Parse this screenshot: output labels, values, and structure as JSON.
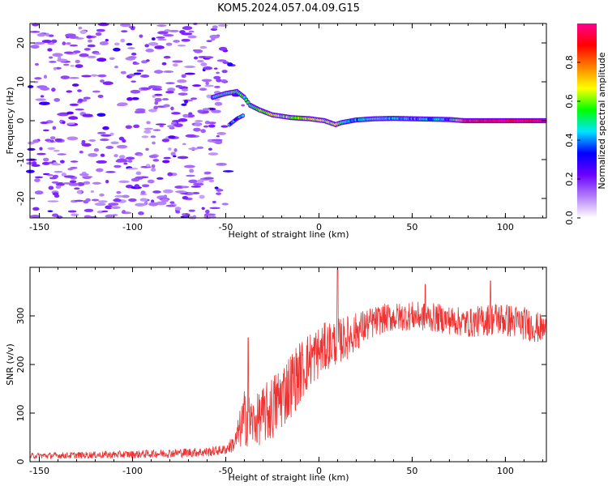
{
  "title": "KOM5.2024.057.04.09.G15",
  "chart_data": [
    {
      "type": "heatmap",
      "xlabel": "Height of straight line (km)",
      "ylabel": "Frequency (Hz)",
      "xlim": [
        -155,
        122
      ],
      "ylim": [
        -25,
        25
      ],
      "x_ticks": [
        -150,
        -100,
        -50,
        0,
        50,
        100
      ],
      "y_ticks": [
        -20,
        -10,
        0,
        10,
        20
      ],
      "colorbar": {
        "label": "Normalized spectral amplitude",
        "range": [
          0,
          1
        ],
        "ticks": [
          0.0,
          0.2,
          0.4,
          0.6,
          0.8
        ],
        "colors": [
          "#ffffff",
          "#b27dfa",
          "#6a00ff",
          "#0000ff",
          "#00e5ff",
          "#00ff00",
          "#ffff00",
          "#ff8000",
          "#ff0000",
          "#ff0090"
        ]
      },
      "ridge": [
        {
          "x": -57,
          "f": 6.0,
          "a": 0.45
        },
        {
          "x": -50,
          "f": 7.0,
          "a": 0.5
        },
        {
          "x": -44,
          "f": 7.5,
          "a": 0.55
        },
        {
          "x": -40,
          "f": 6.0,
          "a": 0.5
        },
        {
          "x": -37,
          "f": 4.0,
          "a": 0.55
        },
        {
          "x": -32,
          "f": 2.8,
          "a": 0.6
        },
        {
          "x": -25,
          "f": 1.5,
          "a": 0.62
        },
        {
          "x": -15,
          "f": 0.8,
          "a": 0.6
        },
        {
          "x": -5,
          "f": 0.5,
          "a": 0.65
        },
        {
          "x": 3,
          "f": 0.0,
          "a": 0.62
        },
        {
          "x": 9,
          "f": -1.0,
          "a": 0.65
        },
        {
          "x": 12,
          "f": -0.5,
          "a": 0.5
        },
        {
          "x": 20,
          "f": 0.2,
          "a": 0.4
        },
        {
          "x": 30,
          "f": 0.5,
          "a": 0.5
        },
        {
          "x": 40,
          "f": 0.6,
          "a": 0.45
        },
        {
          "x": 50,
          "f": 0.5,
          "a": 0.42
        },
        {
          "x": 60,
          "f": 0.4,
          "a": 0.4
        },
        {
          "x": 70,
          "f": 0.3,
          "a": 0.42
        },
        {
          "x": 78,
          "f": 0.0,
          "a": 0.9
        },
        {
          "x": 100,
          "f": 0.0,
          "a": 0.95
        },
        {
          "x": 122,
          "f": 0.0,
          "a": 0.95
        }
      ],
      "lower_branch": [
        {
          "x": -48,
          "f": -1.0,
          "a": 0.4
        },
        {
          "x": -44,
          "f": 0.5,
          "a": 0.4
        },
        {
          "x": -40,
          "f": 1.5,
          "a": 0.45
        }
      ]
    },
    {
      "type": "line",
      "xlabel": "Height of straight line (km)",
      "ylabel": "SNR (v/v)",
      "xlim": [
        -155,
        122
      ],
      "ylim": [
        0,
        400
      ],
      "x_ticks": [
        -150,
        -100,
        -50,
        0,
        50,
        100
      ],
      "y_ticks": [
        0,
        100,
        200,
        300
      ],
      "series": [
        {
          "color": "#ee3333",
          "envelope": [
            {
              "x": -155,
              "y": 12,
              "spread": 6
            },
            {
              "x": -100,
              "y": 15,
              "spread": 8
            },
            {
              "x": -60,
              "y": 20,
              "spread": 10
            },
            {
              "x": -50,
              "y": 25,
              "spread": 10
            },
            {
              "x": -45,
              "y": 40,
              "spread": 20
            },
            {
              "x": -40,
              "y": 90,
              "spread": 60
            },
            {
              "x": -35,
              "y": 80,
              "spread": 50
            },
            {
              "x": -25,
              "y": 110,
              "spread": 70
            },
            {
              "x": -15,
              "y": 160,
              "spread": 70
            },
            {
              "x": -5,
              "y": 210,
              "spread": 60
            },
            {
              "x": 5,
              "y": 240,
              "spread": 50
            },
            {
              "x": 15,
              "y": 255,
              "spread": 45
            },
            {
              "x": 25,
              "y": 280,
              "spread": 35
            },
            {
              "x": 35,
              "y": 295,
              "spread": 30
            },
            {
              "x": 50,
              "y": 300,
              "spread": 30
            },
            {
              "x": 65,
              "y": 295,
              "spread": 30
            },
            {
              "x": 80,
              "y": 285,
              "spread": 30
            },
            {
              "x": 95,
              "y": 295,
              "spread": 35
            },
            {
              "x": 110,
              "y": 285,
              "spread": 35
            },
            {
              "x": 122,
              "y": 270,
              "spread": 30
            }
          ],
          "spikes": [
            {
              "x": -38,
              "y": 255
            },
            {
              "x": 10,
              "y": 395
            },
            {
              "x": 92,
              "y": 372
            },
            {
              "x": 57,
              "y": 365
            }
          ]
        }
      ]
    }
  ]
}
